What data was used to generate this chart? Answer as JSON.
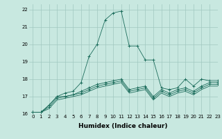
{
  "xlabel": "Humidex (Indice chaleur)",
  "ylabel": "",
  "background_color": "#c8e8e0",
  "grid_color": "#a0c8c0",
  "line_color": "#1a6b5a",
  "xlim": [
    -0.5,
    23
  ],
  "ylim": [
    16,
    22.3
  ],
  "yticks": [
    16,
    17,
    18,
    19,
    20,
    21,
    22
  ],
  "xticks": [
    0,
    1,
    2,
    3,
    4,
    5,
    6,
    7,
    8,
    9,
    10,
    11,
    12,
    13,
    14,
    15,
    16,
    17,
    18,
    19,
    20,
    21,
    22,
    23
  ],
  "series": [
    [
      16.1,
      16.1,
      16.5,
      17.0,
      17.2,
      17.3,
      17.8,
      19.3,
      20.0,
      21.4,
      21.8,
      21.9,
      19.9,
      19.9,
      19.1,
      19.1,
      17.5,
      17.4,
      17.5,
      18.0,
      17.6,
      18.0,
      17.9,
      17.9
    ],
    [
      16.1,
      16.1,
      16.5,
      17.0,
      17.0,
      17.1,
      17.3,
      17.5,
      17.7,
      17.8,
      17.9,
      18.0,
      17.4,
      17.5,
      17.6,
      17.0,
      17.4,
      17.2,
      17.4,
      17.5,
      17.3,
      17.6,
      17.8,
      17.8
    ],
    [
      16.1,
      16.1,
      16.4,
      16.9,
      17.0,
      17.1,
      17.2,
      17.4,
      17.6,
      17.7,
      17.8,
      17.9,
      17.3,
      17.4,
      17.5,
      16.9,
      17.3,
      17.1,
      17.3,
      17.4,
      17.2,
      17.5,
      17.7,
      17.7
    ],
    [
      16.1,
      16.1,
      16.3,
      16.8,
      16.9,
      17.0,
      17.1,
      17.3,
      17.5,
      17.6,
      17.7,
      17.8,
      17.2,
      17.3,
      17.4,
      16.8,
      17.2,
      17.0,
      17.2,
      17.3,
      17.1,
      17.4,
      17.6,
      17.6
    ]
  ],
  "has_markers": [
    true,
    true,
    true,
    false
  ],
  "figsize": [
    3.2,
    2.0
  ],
  "dpi": 100,
  "tick_fontsize": 5,
  "xlabel_fontsize": 6.5,
  "linewidth": 0.6,
  "markersize": 2.5,
  "markeredgewidth": 0.7
}
